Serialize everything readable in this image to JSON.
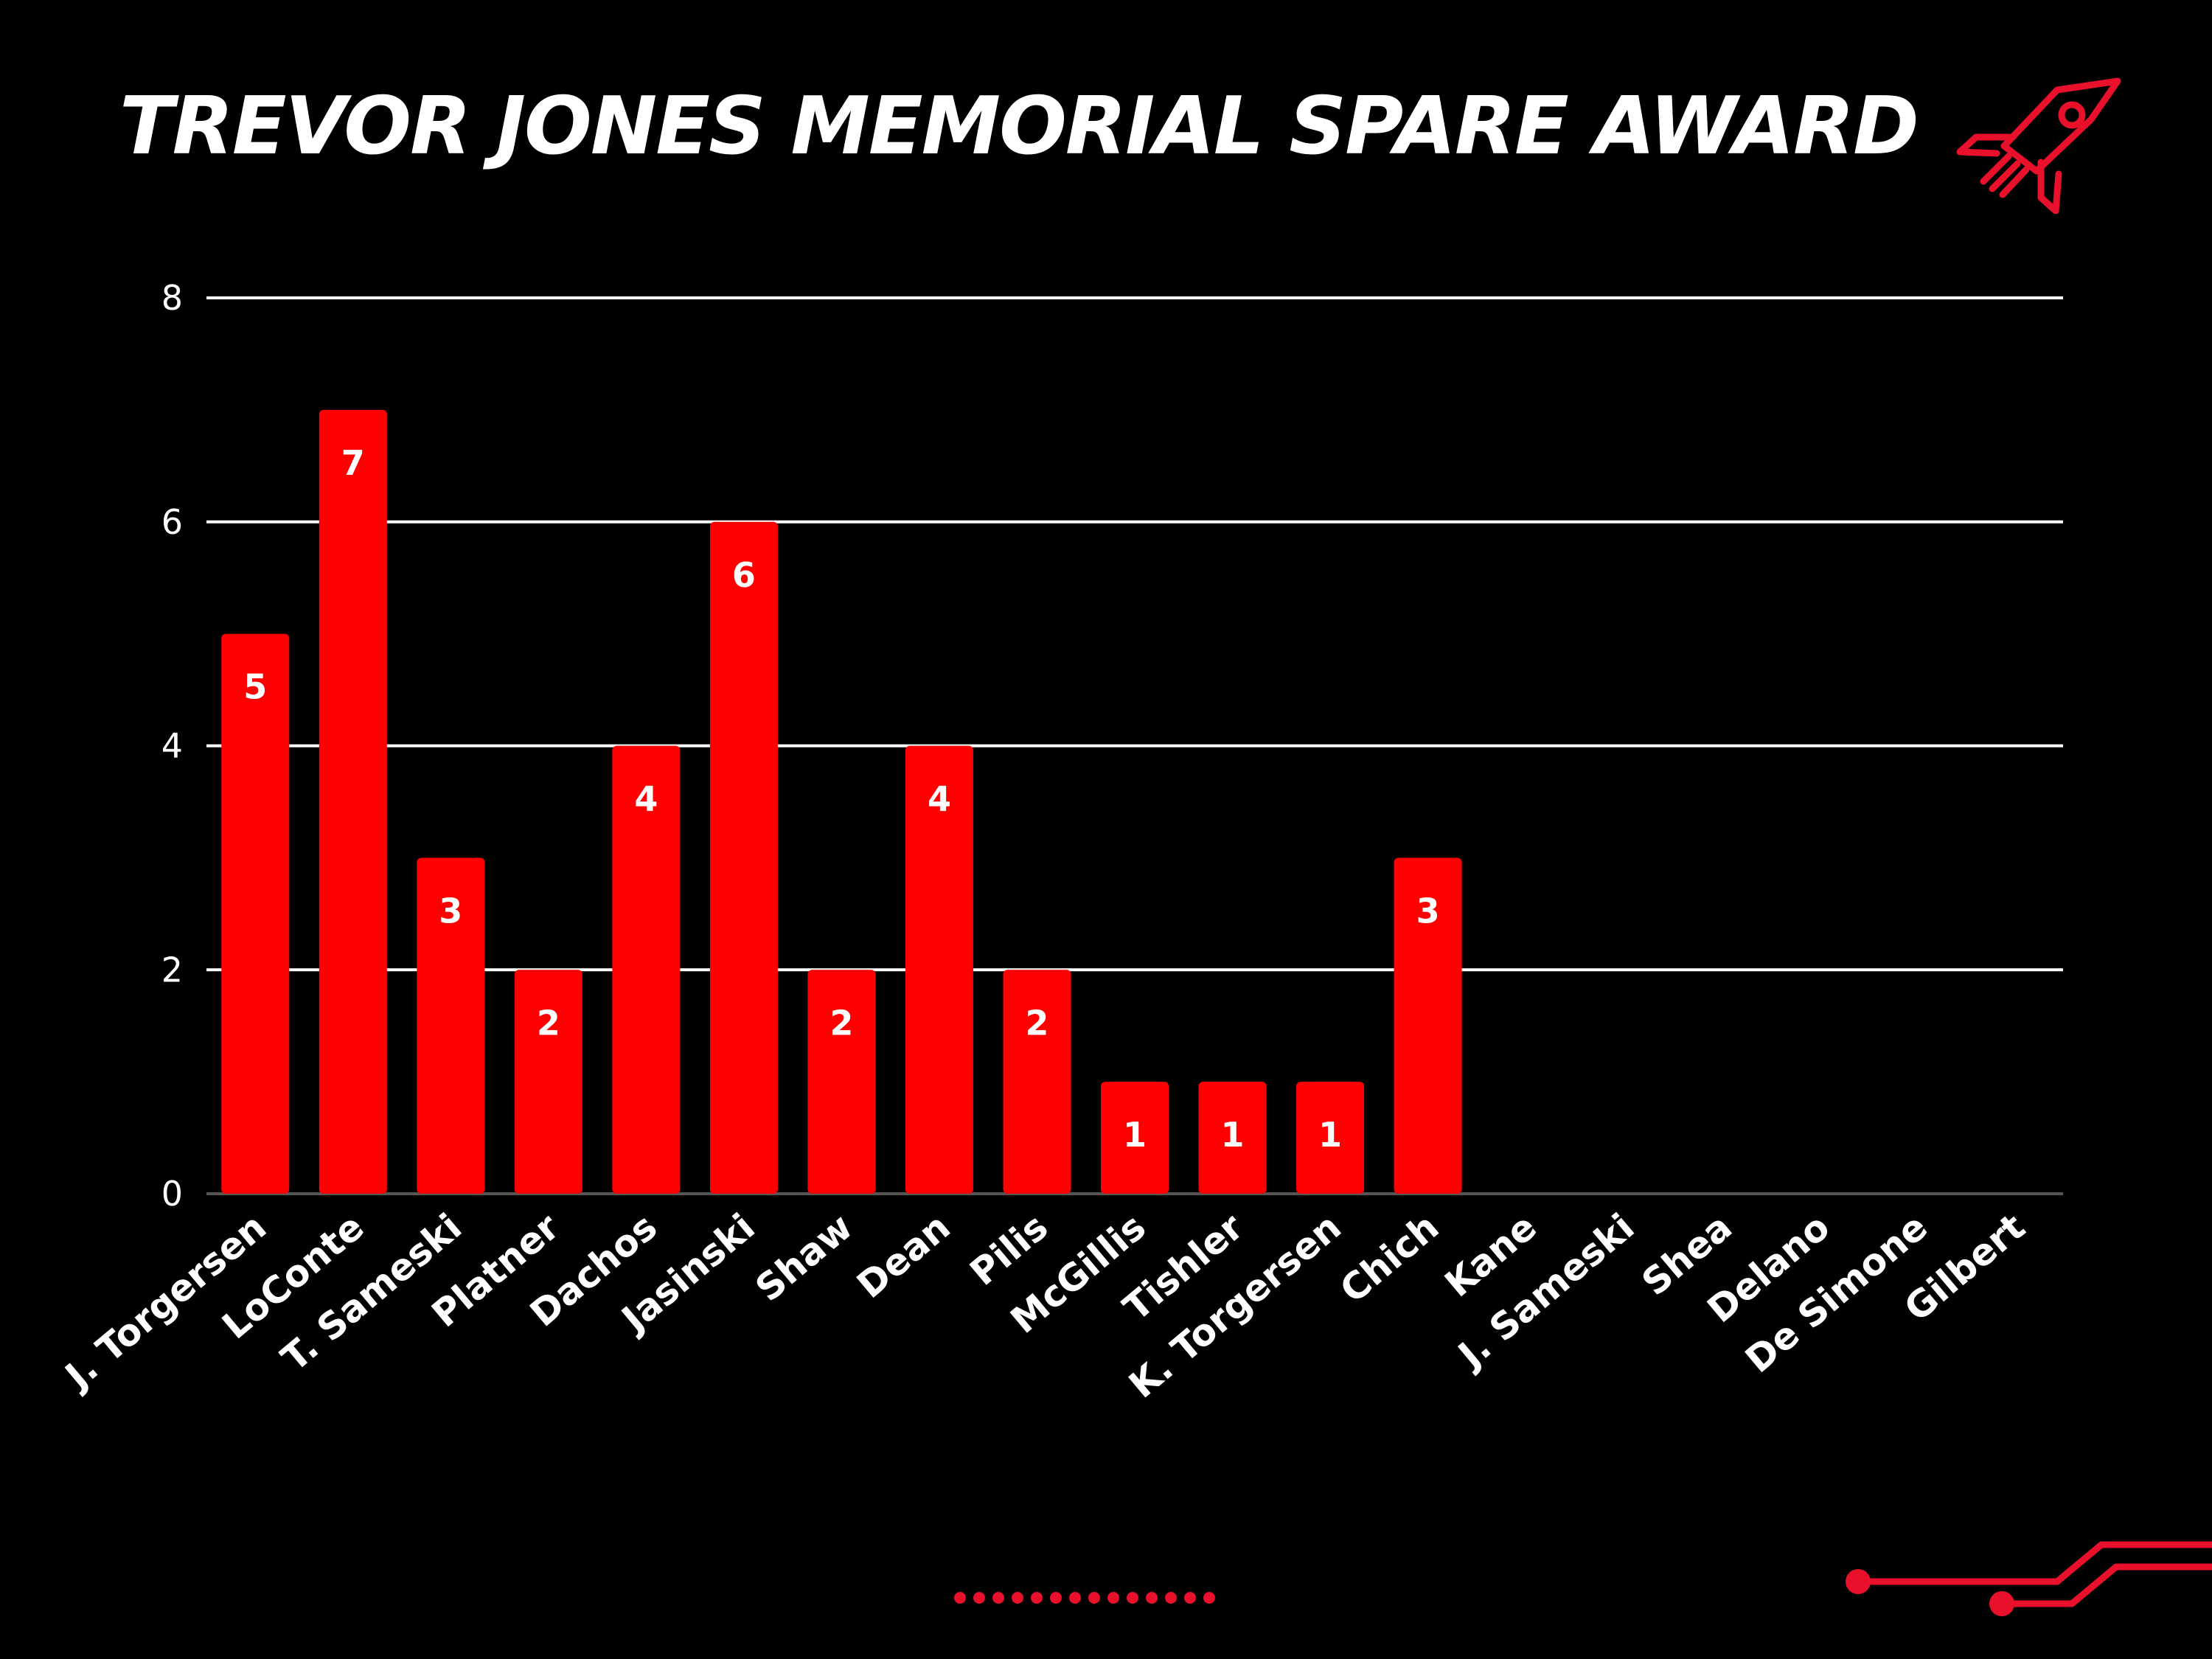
{
  "title": "TREVOR JONES MEMORIAL SPARE AWARD",
  "icons": {
    "rocket": "rocket-icon",
    "dotted_divider": "dotted-divider",
    "circuit": "circuit-lines"
  },
  "colors": {
    "background": "#000000",
    "bar": "#ff0000",
    "text": "#ffffff",
    "gridline": "#ffffff",
    "accent": "#e8102a"
  },
  "chart_data": {
    "type": "bar",
    "title": "TREVOR JONES MEMORIAL SPARE AWARD",
    "xlabel": "",
    "ylabel": "",
    "ylim": [
      0,
      8
    ],
    "yticks": [
      0,
      2,
      4,
      6,
      8
    ],
    "grid": true,
    "legend": "none",
    "categories": [
      "J. Torgersen",
      "LoConte",
      "T. Sameski",
      "Platner",
      "Dachos",
      "Jasinski",
      "Shaw",
      "Dean",
      "Pilis",
      "McGillis",
      "Tishler",
      "K. Torgersen",
      "Chich",
      "Kane",
      "J. Sameski",
      "Shea",
      "Delano",
      "De Simone",
      "Gilbert"
    ],
    "values": [
      5,
      7,
      3,
      2,
      4,
      6,
      2,
      4,
      2,
      1,
      1,
      1,
      3,
      0,
      0,
      0,
      0,
      0,
      0
    ],
    "data_labels": [
      "5",
      "7",
      "3",
      "2",
      "4",
      "6",
      "2",
      "4",
      "2",
      "1",
      "1",
      "1",
      "3",
      "",
      "",
      "",
      "",
      "",
      ""
    ]
  }
}
